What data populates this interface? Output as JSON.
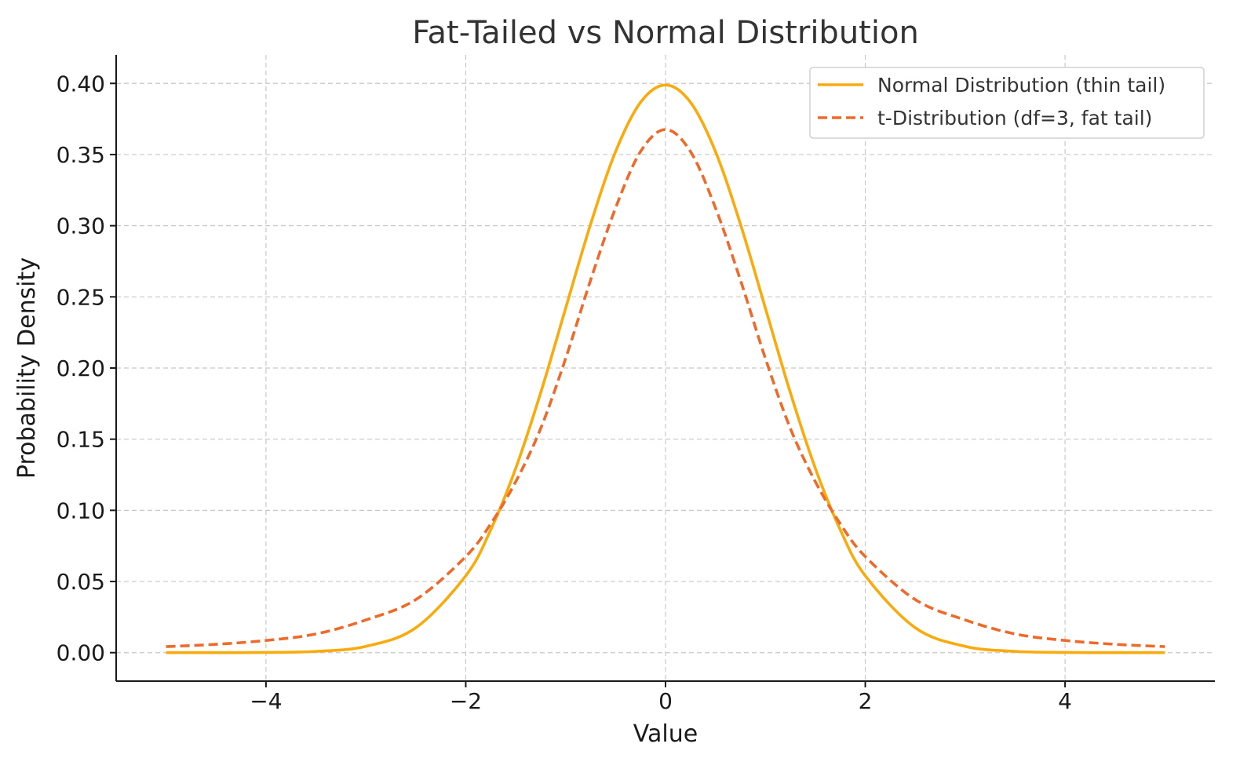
{
  "chart_data": {
    "type": "line",
    "title": "Fat-Tailed vs Normal Distribution",
    "xlabel": "Value",
    "ylabel": "Probability Density",
    "xlim": [
      -5.5,
      5.5
    ],
    "ylim": [
      -0.02,
      0.42
    ],
    "x_ticks": [
      -4,
      -2,
      0,
      2,
      4
    ],
    "x_tick_labels": [
      "−4",
      "−2",
      "0",
      "2",
      "4"
    ],
    "y_ticks": [
      0.0,
      0.05,
      0.1,
      0.15,
      0.2,
      0.25,
      0.3,
      0.35,
      0.4
    ],
    "y_tick_labels": [
      "0.00",
      "0.05",
      "0.10",
      "0.15",
      "0.20",
      "0.25",
      "0.30",
      "0.35",
      "0.40"
    ],
    "grid": true,
    "legend_position": "top-right",
    "x": [
      -5.0,
      -4.5,
      -4.0,
      -3.5,
      -3.0,
      -2.5,
      -2.0,
      -1.75,
      -1.5,
      -1.25,
      -1.0,
      -0.75,
      -0.5,
      -0.25,
      0.0,
      0.25,
      0.5,
      0.75,
      1.0,
      1.25,
      1.5,
      1.75,
      2.0,
      2.5,
      3.0,
      3.5,
      4.0,
      4.5,
      5.0
    ],
    "series": [
      {
        "name": "Normal Distribution (thin tail)",
        "color": "#F9AA0C",
        "style": "solid",
        "values": [
          1.5e-06,
          1.6e-05,
          0.000134,
          0.000873,
          0.00443,
          0.0175,
          0.054,
          0.0863,
          0.1295,
          0.1826,
          0.242,
          0.3011,
          0.3521,
          0.3867,
          0.3989,
          0.3867,
          0.3521,
          0.3011,
          0.242,
          0.1826,
          0.1295,
          0.0863,
          0.054,
          0.0175,
          0.00443,
          0.000873,
          0.000134,
          1.6e-05,
          1.5e-06
        ]
      },
      {
        "name": "t-Distribution (df=3, fat tail)",
        "color": "#EE6A2A",
        "style": "dashed",
        "values": [
          0.00424,
          0.00587,
          0.00856,
          0.01313,
          0.02297,
          0.03729,
          0.06751,
          0.0905,
          0.1201,
          0.1575,
          0.2067,
          0.2618,
          0.3125,
          0.3521,
          0.3676,
          0.3521,
          0.3125,
          0.2618,
          0.2067,
          0.1575,
          0.1201,
          0.0905,
          0.06751,
          0.03729,
          0.02297,
          0.01313,
          0.00856,
          0.00587,
          0.00424
        ]
      }
    ]
  }
}
